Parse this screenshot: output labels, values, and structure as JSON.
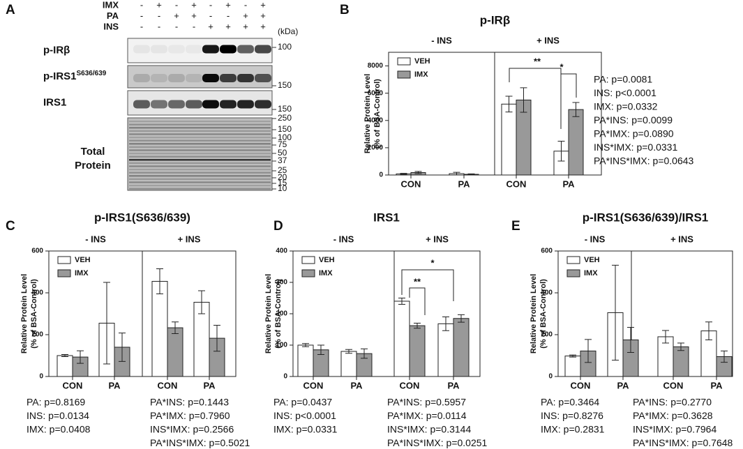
{
  "blot": {
    "letter": "A",
    "rows": [
      {
        "label": "IMX",
        "signs": [
          "-",
          "+",
          "-",
          "+",
          "-",
          "+",
          "-",
          "+"
        ]
      },
      {
        "label": "PA",
        "signs": [
          "-",
          "-",
          "+",
          "+",
          "-",
          "-",
          "+",
          "+"
        ]
      },
      {
        "label": "INS",
        "signs": [
          "-",
          "-",
          "-",
          "-",
          "+",
          "+",
          "+",
          "+"
        ]
      }
    ],
    "unit": "(kDa)",
    "bands": [
      {
        "label": "p-IRβ",
        "markers": [
          "100"
        ]
      },
      {
        "label": "p-IRS1",
        "superscript": "S636/639",
        "markers": [
          "150"
        ]
      },
      {
        "label": "IRS1",
        "markers": [
          "150"
        ]
      },
      {
        "label": [
          "Total",
          "Protein"
        ],
        "markers": [
          "250",
          "150",
          "100",
          "75",
          "50",
          "37",
          "25",
          "20",
          "15",
          "10"
        ]
      }
    ]
  },
  "chart_data": [
    {
      "type": "bar",
      "letter": "B",
      "title": "p-IRβ",
      "ylabel": [
        "Relative Protein Level",
        "(% of BSA-Control)"
      ],
      "groups": [
        "- INS",
        "+ INS"
      ],
      "categories": [
        "CON",
        "PA",
        "CON",
        "PA"
      ],
      "series": [
        {
          "name": "VEH",
          "color": "#ffffff",
          "values": [
            80,
            100,
            5200,
            1750
          ],
          "errors": [
            40,
            100,
            580,
            730
          ]
        },
        {
          "name": "IMX",
          "color": "#999999",
          "values": [
            180,
            50,
            5500,
            4800
          ],
          "errors": [
            80,
            30,
            900,
            520
          ]
        }
      ],
      "ylim": [
        0,
        9000
      ],
      "yticks": [
        0,
        2000,
        4000,
        6000,
        8000
      ],
      "annotations": [
        "**",
        "*"
      ],
      "stats": [
        [
          "PA: p=0.0081",
          "INS: p<0.0001",
          "IMX: p=0.0332",
          "PA*INS: p=0.0099",
          "PA*IMX: p=0.0890",
          "INS*IMX: p=0.0331",
          "PA*INS*IMX: p=0.0643"
        ]
      ]
    },
    {
      "type": "bar",
      "letter": "C",
      "title": "p-IRS1(S636/639)",
      "ylabel": [
        "Relative Protein Level",
        "(% of BSA-Control)"
      ],
      "groups": [
        "- INS",
        "+ INS"
      ],
      "categories": [
        "CON",
        "PA",
        "CON",
        "PA"
      ],
      "series": [
        {
          "name": "VEH",
          "color": "#ffffff",
          "values": [
            100,
            255,
            455,
            355
          ],
          "errors": [
            5,
            195,
            60,
            55
          ]
        },
        {
          "name": "IMX",
          "color": "#999999",
          "values": [
            93,
            140,
            233,
            183
          ],
          "errors": [
            30,
            68,
            28,
            62
          ]
        }
      ],
      "ylim": [
        0,
        600
      ],
      "yticks": [
        0,
        200,
        400,
        600
      ],
      "annotations": [],
      "stats": [
        [
          "PA: p=0.8169",
          "INS: p=0.0134",
          "IMX: p=0.0408"
        ],
        [
          "PA*INS: p=0.1443",
          "PA*IMX: p=0.7960",
          "INS*IMX: p=0.2566",
          "PA*INS*IMX: p=0.5021"
        ]
      ]
    },
    {
      "type": "bar",
      "letter": "D",
      "title": "IRS1",
      "ylabel": [
        "Relative Protein Level",
        "(% of BSA-Control)"
      ],
      "groups": [
        "- INS",
        "+ INS"
      ],
      "categories": [
        "CON",
        "PA",
        "CON",
        "PA"
      ],
      "series": [
        {
          "name": "VEH",
          "color": "#ffffff",
          "values": [
            100,
            80,
            240,
            168
          ],
          "errors": [
            5,
            6,
            10,
            22
          ]
        },
        {
          "name": "IMX",
          "color": "#999999",
          "values": [
            85,
            73,
            162,
            185
          ],
          "errors": [
            15,
            15,
            8,
            12
          ]
        }
      ],
      "ylim": [
        0,
        400
      ],
      "yticks": [
        0,
        100,
        200,
        300,
        400
      ],
      "annotations": [
        "**",
        "*"
      ],
      "stats": [
        [
          "PA: p=0.0437",
          "INS: p<0.0001",
          "IMX: p=0.0331"
        ],
        [
          "PA*INS: p=0.5957",
          "PA*IMX: p=0.0114",
          "INS*IMX: p=0.3144",
          "PA*INS*IMX: p=0.0251"
        ]
      ]
    },
    {
      "type": "bar",
      "letter": "E",
      "title": "p-IRS1(S636/639)/IRS1",
      "ylabel": [
        "Relative Protein Level",
        "(% of BSA-Control)"
      ],
      "groups": [
        "- INS",
        "+ INS"
      ],
      "categories": [
        "CON",
        "PA",
        "CON",
        "PA"
      ],
      "series": [
        {
          "name": "VEH",
          "color": "#ffffff",
          "values": [
            98,
            305,
            190,
            218
          ],
          "errors": [
            5,
            227,
            30,
            43
          ]
        },
        {
          "name": "IMX",
          "color": "#999999",
          "values": [
            122,
            175,
            142,
            95
          ],
          "errors": [
            55,
            60,
            18,
            27
          ]
        }
      ],
      "ylim": [
        0,
        600
      ],
      "yticks": [
        0,
        200,
        400,
        600
      ],
      "annotations": [],
      "stats": [
        [
          "PA: p=0.3464",
          "INS: p=0.8276",
          "IMX: p=0.2831"
        ],
        [
          "PA*INS: p=0.2770",
          "PA*IMX: p=0.3628",
          "INS*IMX: p=0.7964",
          "PA*INS*IMX: p=0.7648"
        ]
      ]
    }
  ]
}
